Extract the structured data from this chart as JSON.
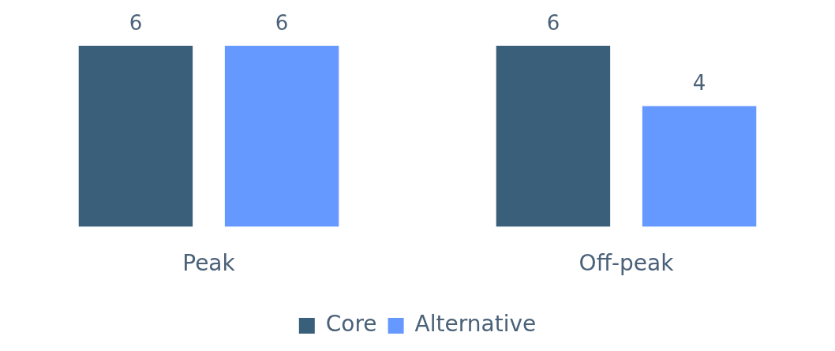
{
  "chart_data": {
    "type": "bar",
    "categories": [
      "Peak",
      "Off-peak"
    ],
    "series": [
      {
        "name": "Core",
        "color": "#3a5f7a",
        "values": [
          6,
          6
        ]
      },
      {
        "name": "Alternative",
        "color": "#6699ff",
        "values": [
          6,
          4
        ]
      }
    ],
    "data_labels": true,
    "legend": "bottom",
    "grid": false,
    "tick_labels": "x"
  }
}
